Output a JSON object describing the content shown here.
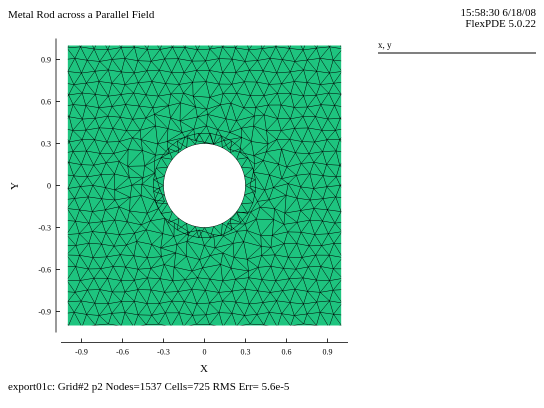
{
  "chart_data": {
    "type": "mesh",
    "title": "Metal Rod across a Parallel Field",
    "timestamp": "15:58:30 6/18/08",
    "software": "FlexPDE 5.0.22",
    "legend_label": "x, y",
    "xlabel": "X",
    "ylabel": "Y",
    "footer": "export01c:  Grid#2  p2  Nodes=1537 Cells=725 RMS Err= 5.6e-5",
    "domain": [
      -1,
      1
    ],
    "hole_radius": 0.3,
    "color": "#1ec47f",
    "xlim": [
      -1.05,
      1.05
    ],
    "ylim": [
      -1.05,
      1.05
    ],
    "xticks": [
      -0.9,
      -0.6,
      -0.3,
      0,
      0.3,
      0.6,
      0.9
    ],
    "yticks": [
      -0.9,
      -0.6,
      -0.3,
      0,
      0.3,
      0.6,
      0.9
    ]
  }
}
